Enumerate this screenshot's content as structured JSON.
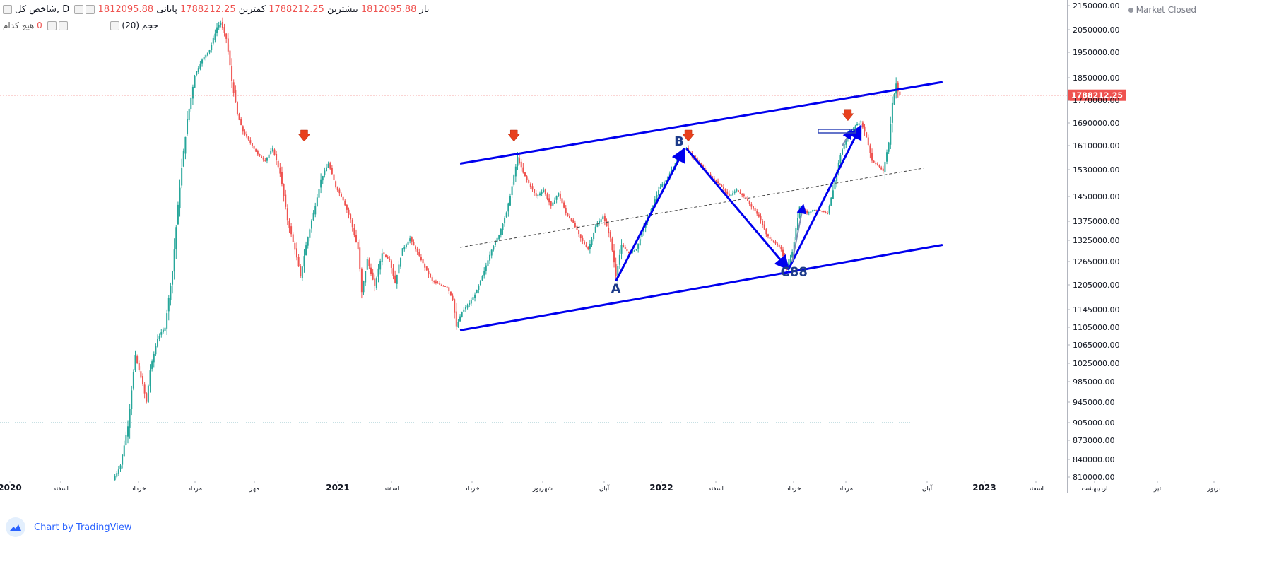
{
  "legend": {
    "symbol": "شاخص کل",
    "interval": "D",
    "open_label": "باز",
    "open": "1812095.88",
    "high_label": "بیشترین",
    "high": "1812095.88",
    "low_label": "کمترین",
    "low": "1788212.25",
    "close_label": "پایانی",
    "close": "1788212.25",
    "volume_label": "حجم (20)",
    "volume_ma_label": "هیچ کدام",
    "volume_value": "0"
  },
  "status": {
    "text": "Market Closed"
  },
  "watermark": {
    "text": "Chart by TradingView"
  },
  "colors": {
    "up": "#26a69a",
    "down": "#ef5350",
    "channel": "#0000ee",
    "last_price": "#ef5350",
    "arrow_marker": "#e8401c"
  },
  "icons": {
    "logo": "tradingview-cloud-icon",
    "collapse": "collapse-icon",
    "marker": "down-arrow-icon"
  },
  "chart_data": {
    "type": "candlestick",
    "y_ticks": [
      "2150000.00",
      "2050000.00",
      "1950000.00",
      "1850000.00",
      "1770000.00",
      "1690000.00",
      "1610000.00",
      "1530000.00",
      "1450000.00",
      "1375000.00",
      "1325000.00",
      "1265000.00",
      "1205000.00",
      "1145000.00",
      "1105000.00",
      "1065000.00",
      "1025000.00",
      "985000.00",
      "945000.00",
      "905000.00",
      "873000.00",
      "840000.00",
      "810000.00"
    ],
    "x_ticks": [
      "2020",
      "اسفند",
      "خرداد",
      "مرداد",
      "مهر",
      "2021",
      "اسفند",
      "خرداد",
      "شهریور",
      "آبان",
      "2022",
      "اسفند",
      "خرداد",
      "مرداد",
      "آبان",
      "2023",
      "اسفند",
      "اردیبهشت",
      "تیر",
      "بریور"
    ],
    "last_price": "1788212.25",
    "anchors": [
      {
        "i": 0,
        "v": 805000
      },
      {
        "i": 4,
        "v": 830000
      },
      {
        "i": 8,
        "v": 900000
      },
      {
        "i": 12,
        "v": 1040000
      },
      {
        "i": 15,
        "v": 995000
      },
      {
        "i": 18,
        "v": 945000
      },
      {
        "i": 20,
        "v": 1010000
      },
      {
        "i": 24,
        "v": 1080000
      },
      {
        "i": 28,
        "v": 1105000
      },
      {
        "i": 32,
        "v": 1240000
      },
      {
        "i": 36,
        "v": 1480000
      },
      {
        "i": 40,
        "v": 1700000
      },
      {
        "i": 44,
        "v": 1860000
      },
      {
        "i": 48,
        "v": 1920000
      },
      {
        "i": 52,
        "v": 1960000
      },
      {
        "i": 56,
        "v": 2060000
      },
      {
        "i": 58,
        "v": 2080000
      },
      {
        "i": 61,
        "v": 2010000
      },
      {
        "i": 64,
        "v": 1840000
      },
      {
        "i": 67,
        "v": 1720000
      },
      {
        "i": 70,
        "v": 1660000
      },
      {
        "i": 74,
        "v": 1620000
      },
      {
        "i": 78,
        "v": 1580000
      },
      {
        "i": 82,
        "v": 1560000
      },
      {
        "i": 86,
        "v": 1600000
      },
      {
        "i": 90,
        "v": 1520000
      },
      {
        "i": 94,
        "v": 1380000
      },
      {
        "i": 98,
        "v": 1300000
      },
      {
        "i": 101,
        "v": 1225000
      },
      {
        "i": 104,
        "v": 1310000
      },
      {
        "i": 108,
        "v": 1400000
      },
      {
        "i": 112,
        "v": 1500000
      },
      {
        "i": 116,
        "v": 1550000
      },
      {
        "i": 120,
        "v": 1480000
      },
      {
        "i": 124,
        "v": 1440000
      },
      {
        "i": 128,
        "v": 1380000
      },
      {
        "i": 132,
        "v": 1300000
      },
      {
        "i": 134,
        "v": 1185000
      },
      {
        "i": 137,
        "v": 1270000
      },
      {
        "i": 141,
        "v": 1200000
      },
      {
        "i": 145,
        "v": 1290000
      },
      {
        "i": 149,
        "v": 1270000
      },
      {
        "i": 152,
        "v": 1210000
      },
      {
        "i": 156,
        "v": 1300000
      },
      {
        "i": 160,
        "v": 1330000
      },
      {
        "i": 164,
        "v": 1290000
      },
      {
        "i": 168,
        "v": 1250000
      },
      {
        "i": 172,
        "v": 1215000
      },
      {
        "i": 176,
        "v": 1205000
      },
      {
        "i": 180,
        "v": 1200000
      },
      {
        "i": 183,
        "v": 1170000
      },
      {
        "i": 185,
        "v": 1105000
      },
      {
        "i": 188,
        "v": 1140000
      },
      {
        "i": 192,
        "v": 1160000
      },
      {
        "i": 196,
        "v": 1190000
      },
      {
        "i": 200,
        "v": 1240000
      },
      {
        "i": 204,
        "v": 1300000
      },
      {
        "i": 208,
        "v": 1340000
      },
      {
        "i": 212,
        "v": 1400000
      },
      {
        "i": 215,
        "v": 1480000
      },
      {
        "i": 218,
        "v": 1570000
      },
      {
        "i": 221,
        "v": 1520000
      },
      {
        "i": 224,
        "v": 1490000
      },
      {
        "i": 228,
        "v": 1450000
      },
      {
        "i": 232,
        "v": 1470000
      },
      {
        "i": 236,
        "v": 1420000
      },
      {
        "i": 240,
        "v": 1460000
      },
      {
        "i": 244,
        "v": 1400000
      },
      {
        "i": 248,
        "v": 1370000
      },
      {
        "i": 252,
        "v": 1330000
      },
      {
        "i": 256,
        "v": 1300000
      },
      {
        "i": 260,
        "v": 1360000
      },
      {
        "i": 264,
        "v": 1390000
      },
      {
        "i": 268,
        "v": 1330000
      },
      {
        "i": 271,
        "v": 1230000
      },
      {
        "i": 274,
        "v": 1310000
      },
      {
        "i": 278,
        "v": 1290000
      },
      {
        "i": 282,
        "v": 1300000
      },
      {
        "i": 286,
        "v": 1360000
      },
      {
        "i": 290,
        "v": 1410000
      },
      {
        "i": 294,
        "v": 1470000
      },
      {
        "i": 298,
        "v": 1500000
      },
      {
        "i": 302,
        "v": 1540000
      },
      {
        "i": 306,
        "v": 1590000
      },
      {
        "i": 309,
        "v": 1600000
      },
      {
        "i": 312,
        "v": 1575000
      },
      {
        "i": 316,
        "v": 1550000
      },
      {
        "i": 320,
        "v": 1520000
      },
      {
        "i": 324,
        "v": 1500000
      },
      {
        "i": 328,
        "v": 1480000
      },
      {
        "i": 332,
        "v": 1450000
      },
      {
        "i": 336,
        "v": 1470000
      },
      {
        "i": 340,
        "v": 1450000
      },
      {
        "i": 344,
        "v": 1420000
      },
      {
        "i": 348,
        "v": 1390000
      },
      {
        "i": 352,
        "v": 1340000
      },
      {
        "i": 356,
        "v": 1320000
      },
      {
        "i": 360,
        "v": 1300000
      },
      {
        "i": 363,
        "v": 1245000
      },
      {
        "i": 366,
        "v": 1290000
      },
      {
        "i": 370,
        "v": 1420000
      },
      {
        "i": 374,
        "v": 1400000
      },
      {
        "i": 378,
        "v": 1410000
      },
      {
        "i": 382,
        "v": 1405000
      },
      {
        "i": 385,
        "v": 1395000
      },
      {
        "i": 388,
        "v": 1470000
      },
      {
        "i": 392,
        "v": 1580000
      },
      {
        "i": 396,
        "v": 1650000
      },
      {
        "i": 400,
        "v": 1680000
      },
      {
        "i": 403,
        "v": 1695000
      },
      {
        "i": 406,
        "v": 1640000
      },
      {
        "i": 409,
        "v": 1560000
      },
      {
        "i": 412,
        "v": 1545000
      },
      {
        "i": 415,
        "v": 1525000
      },
      {
        "i": 418,
        "v": 1620000
      },
      {
        "i": 420,
        "v": 1760000
      },
      {
        "i": 422,
        "v": 1830000
      },
      {
        "i": 423,
        "v": 1800000
      },
      {
        "i": 424,
        "v": 1788212
      }
    ],
    "drawings": [
      {
        "kind": "channel-top",
        "from": {
          "i": 187,
          "v": 1550000
        },
        "to": {
          "i": 447,
          "v": 1835000
        }
      },
      {
        "kind": "channel-bottom",
        "from": {
          "i": 187,
          "v": 1098000
        },
        "to": {
          "i": 447,
          "v": 1312000
        }
      },
      {
        "kind": "channel-mid",
        "from": {
          "i": 187,
          "v": 1305000
        },
        "to": {
          "i": 437,
          "v": 1535000
        }
      },
      {
        "kind": "wave",
        "from": {
          "i": 271,
          "v": 1215000
        },
        "to": {
          "i": 308,
          "v": 1600000
        }
      },
      {
        "kind": "wave",
        "from": {
          "i": 309,
          "v": 1600000
        },
        "to": {
          "i": 364,
          "v": 1245000
        }
      },
      {
        "kind": "wave",
        "from": {
          "i": 364,
          "v": 1245000
        },
        "to": {
          "i": 403,
          "v": 1680000
        }
      }
    ],
    "wave_labels": [
      {
        "text": "A",
        "i": 271,
        "v": 1185000
      },
      {
        "text": "B",
        "i": 305,
        "v": 1610000
      },
      {
        "text": "C88",
        "i": 367,
        "v": 1228000
      }
    ],
    "markers": [
      {
        "i": 103,
        "v": 1640000
      },
      {
        "i": 216,
        "v": 1640000
      },
      {
        "i": 310,
        "v": 1640000
      },
      {
        "i": 396,
        "v": 1713000
      }
    ],
    "level_box": {
      "i0": 380,
      "i1": 400,
      "v": 1660000
    },
    "ref_line": {
      "v": 905000
    }
  }
}
